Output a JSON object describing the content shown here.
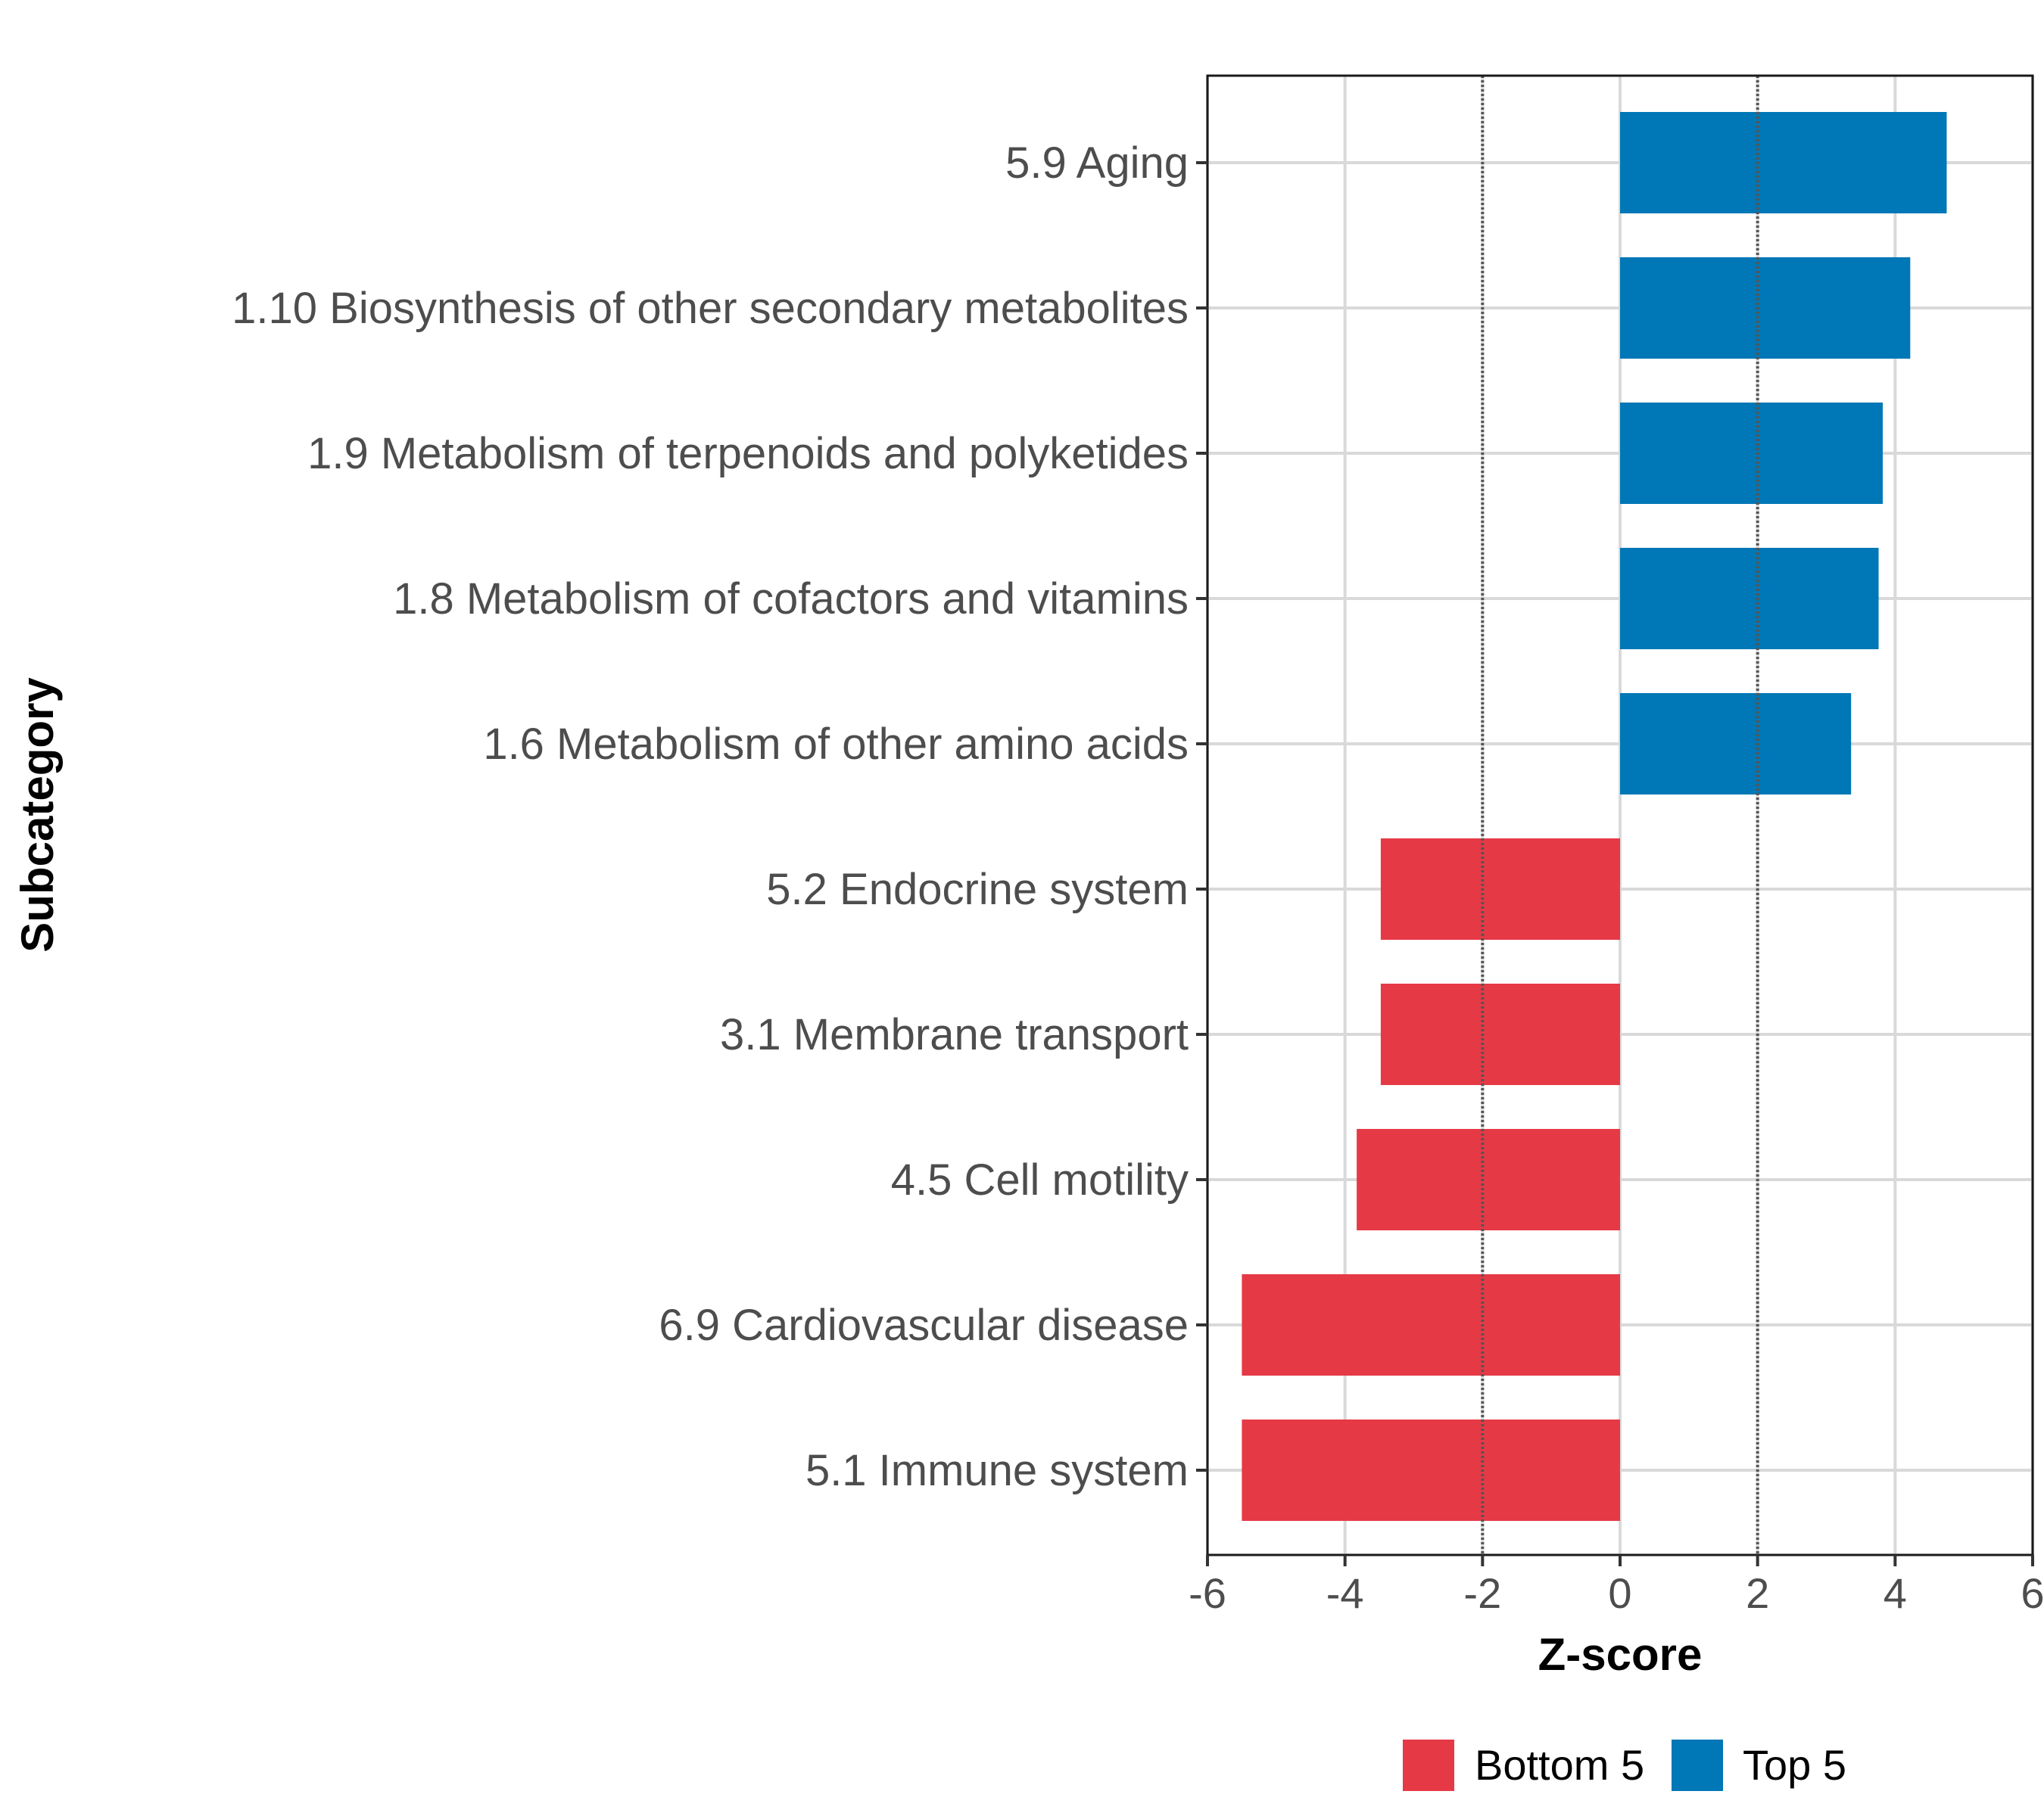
{
  "chart_data": {
    "type": "bar",
    "orientation": "horizontal",
    "title": "",
    "xlabel": "Z-score",
    "ylabel": "Subcategory",
    "xlim": [
      -6,
      6
    ],
    "xticks": [
      -6,
      -4,
      -2,
      0,
      2,
      4,
      6
    ],
    "xtick_labels": [
      "-6",
      "-4",
      "-2",
      "0",
      "2",
      "4",
      "6"
    ],
    "reference_lines": [
      -2,
      2
    ],
    "grid": true,
    "legend_position": "bottom",
    "categories": [
      "5.9 Aging",
      "1.10 Biosynthesis of other secondary metabolites",
      "1.9 Metabolism of terpenoids and polyketides",
      "1.8 Metabolism of cofactors and vitamins",
      "1.6 Metabolism of other amino acids",
      "5.2 Endocrine system",
      "3.1 Membrane transport",
      "4.5 Cell motility",
      "6.9 Cardiovascular disease",
      "5.1 Immune system"
    ],
    "values": [
      4.75,
      4.22,
      3.82,
      3.76,
      3.36,
      -3.48,
      -3.48,
      -3.83,
      -5.5,
      -5.5
    ],
    "groups": [
      "Top 5",
      "Top 5",
      "Top 5",
      "Top 5",
      "Top 5",
      "Bottom 5",
      "Bottom 5",
      "Bottom 5",
      "Bottom 5",
      "Bottom 5"
    ],
    "legend": [
      {
        "name": "Bottom 5",
        "color": "#E63946"
      },
      {
        "name": "Top 5",
        "color": "#0077B6"
      }
    ]
  }
}
